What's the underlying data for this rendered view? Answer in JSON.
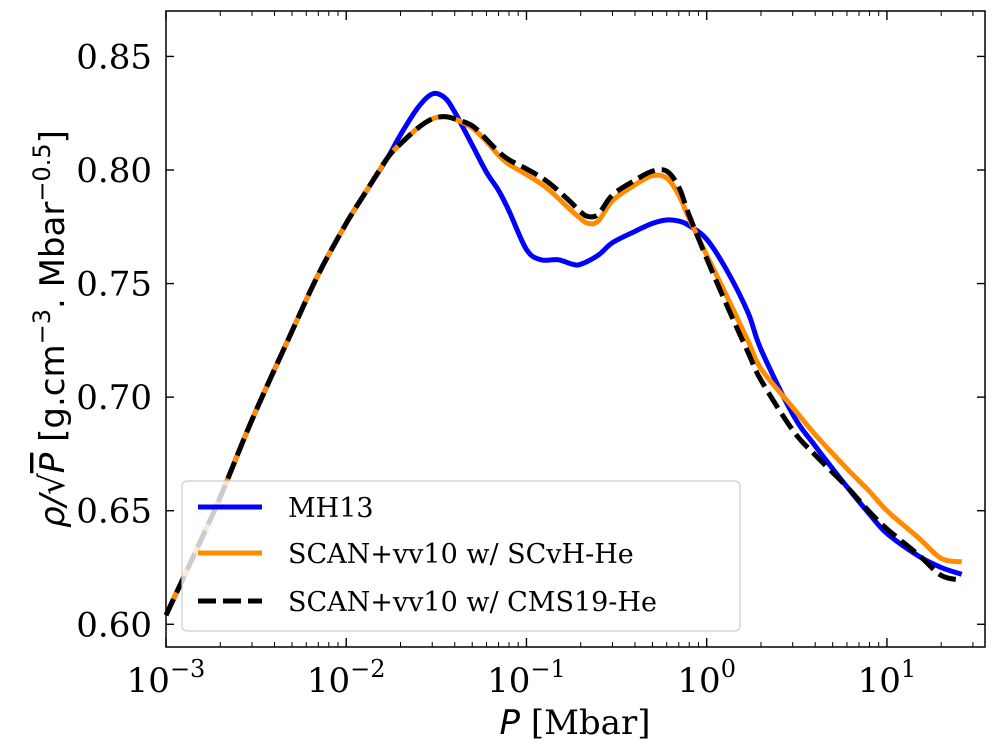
{
  "chart_data": {
    "type": "line",
    "x_scale": "log",
    "xlim": [
      0.001,
      35
    ],
    "ylim": [
      0.59,
      0.87
    ],
    "y_ticks": [
      0.6,
      0.65,
      0.7,
      0.75,
      0.8,
      0.85
    ],
    "y_tick_labels": [
      "0.60",
      "0.65",
      "0.70",
      "0.75",
      "0.80",
      "0.85"
    ],
    "x_ticks": [
      0.001,
      0.01,
      0.1,
      1,
      10
    ],
    "x_tick_labels": [
      {
        "base": "10",
        "exp": "−3"
      },
      {
        "base": "10",
        "exp": "−2"
      },
      {
        "base": "10",
        "exp": "−1"
      },
      {
        "base": "10",
        "exp": "0"
      },
      {
        "base": "10",
        "exp": "1"
      }
    ],
    "xlabel": {
      "symbol": "P",
      "rest": " [Mbar]"
    },
    "ylabel": {
      "rho": "ρ/√",
      "P": "P",
      "bracket": " [g.cm",
      "exp1": "−3",
      "mid": ". Mbar",
      "exp2": "−0.5",
      "close": "]"
    },
    "legend_position": "lower-left",
    "grid": false,
    "series": [
      {
        "name": "MH13",
        "color": "#0000ff",
        "style": "solid",
        "x": [
          0.001,
          0.0015,
          0.002,
          0.003,
          0.005,
          0.007,
          0.01,
          0.013,
          0.017,
          0.02,
          0.025,
          0.03,
          0.035,
          0.04,
          0.05,
          0.06,
          0.07,
          0.08,
          0.1,
          0.12,
          0.15,
          0.18,
          0.2,
          0.25,
          0.3,
          0.4,
          0.5,
          0.6,
          0.7,
          0.8,
          1.0,
          1.3,
          1.7,
          2.0,
          3.0,
          4.0,
          6.0,
          8.0,
          10.0,
          15.0,
          20.0,
          26.0
        ],
        "y": [
          0.604,
          0.634,
          0.656,
          0.69,
          0.729,
          0.754,
          0.7765,
          0.791,
          0.8055,
          0.8155,
          0.8275,
          0.8335,
          0.832,
          0.8255,
          0.811,
          0.799,
          0.791,
          0.782,
          0.765,
          0.7605,
          0.7605,
          0.7585,
          0.7585,
          0.7625,
          0.768,
          0.773,
          0.7765,
          0.778,
          0.7775,
          0.7755,
          0.7695,
          0.7555,
          0.737,
          0.721,
          0.6925,
          0.6785,
          0.6605,
          0.6485,
          0.64,
          0.63,
          0.625,
          0.622
        ]
      },
      {
        "name": "SCAN+vv10 w/ SCvH-He",
        "color": "#ff8c00",
        "style": "solid",
        "x": [
          0.001,
          0.0015,
          0.002,
          0.003,
          0.005,
          0.007,
          0.01,
          0.013,
          0.017,
          0.02,
          0.025,
          0.03,
          0.035,
          0.04,
          0.05,
          0.06,
          0.07,
          0.08,
          0.1,
          0.13,
          0.17,
          0.2,
          0.22,
          0.25,
          0.3,
          0.4,
          0.5,
          0.6,
          0.7,
          0.8,
          1.0,
          1.3,
          1.7,
          2.0,
          3.0,
          4.0,
          6.0,
          8.0,
          10.0,
          15.0,
          20.0,
          26.0
        ],
        "y": [
          0.604,
          0.634,
          0.656,
          0.69,
          0.729,
          0.754,
          0.7765,
          0.791,
          0.8055,
          0.8115,
          0.8185,
          0.8225,
          0.8235,
          0.8225,
          0.8185,
          0.8125,
          0.8065,
          0.8025,
          0.798,
          0.792,
          0.7835,
          0.7785,
          0.7765,
          0.7775,
          0.7865,
          0.7935,
          0.7975,
          0.7965,
          0.789,
          0.7785,
          0.7625,
          0.744,
          0.7245,
          0.7125,
          0.6955,
          0.6835,
          0.6685,
          0.6585,
          0.65,
          0.638,
          0.629,
          0.6275
        ]
      },
      {
        "name": "SCAN+vv10 w/ CMS19-He",
        "color": "#000000",
        "style": "dashed",
        "x": [
          0.001,
          0.0015,
          0.002,
          0.003,
          0.005,
          0.007,
          0.01,
          0.013,
          0.017,
          0.02,
          0.025,
          0.03,
          0.035,
          0.04,
          0.05,
          0.06,
          0.07,
          0.08,
          0.1,
          0.13,
          0.17,
          0.2,
          0.22,
          0.25,
          0.3,
          0.4,
          0.5,
          0.6,
          0.7,
          0.8,
          1.0,
          1.3,
          1.7,
          2.0,
          3.0,
          4.0,
          6.0,
          8.0,
          10.0,
          15.0,
          20.0,
          26.0
        ],
        "y": [
          0.604,
          0.634,
          0.656,
          0.69,
          0.729,
          0.754,
          0.7765,
          0.791,
          0.8055,
          0.8115,
          0.8185,
          0.8225,
          0.8235,
          0.8225,
          0.8195,
          0.8135,
          0.808,
          0.8045,
          0.8005,
          0.795,
          0.787,
          0.7815,
          0.7795,
          0.7805,
          0.789,
          0.7955,
          0.7995,
          0.7995,
          0.7925,
          0.78,
          0.761,
          0.74,
          0.7195,
          0.7075,
          0.6855,
          0.6745,
          0.6605,
          0.6495,
          0.642,
          0.6305,
          0.6215,
          0.6195
        ]
      }
    ]
  }
}
